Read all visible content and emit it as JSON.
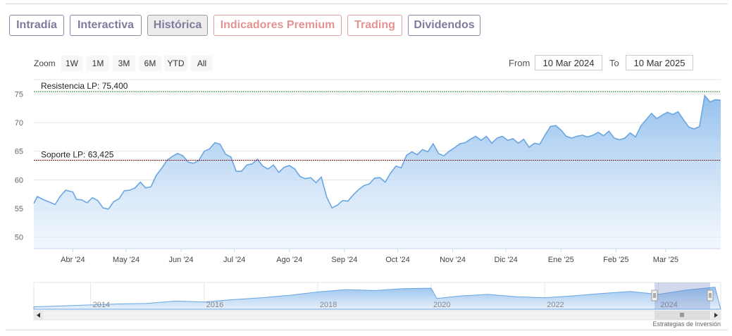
{
  "tabs": [
    {
      "label": "Intradía",
      "variant": "normal"
    },
    {
      "label": "Interactiva",
      "variant": "normal"
    },
    {
      "label": "Histórica",
      "variant": "active"
    },
    {
      "label": "Indicadores Premium",
      "variant": "premium"
    },
    {
      "label": "Trading",
      "variant": "premium"
    },
    {
      "label": "Dividendos",
      "variant": "normal"
    }
  ],
  "zoom": {
    "label": "Zoom",
    "buttons": [
      "1W",
      "1M",
      "3M",
      "6M",
      "YTD",
      "All"
    ]
  },
  "range": {
    "from_label": "From",
    "from_value": "10 Mar 2024",
    "to_label": "To",
    "to_value": "10 Mar 2025"
  },
  "watermark": "Estrategias de Inversión",
  "colors": {
    "line": "#6aa6e2",
    "fill_top": "#8fbdec",
    "resistance": "#2d8a3e",
    "support": "#8b1a1a",
    "tab_border": "#8c87a8",
    "premium": "#e39393"
  },
  "chart_data": {
    "type": "area",
    "x_start": "2024-03-10",
    "x_end": "2025-03-10",
    "ylim": [
      48,
      77.5
    ],
    "yticks": [
      50,
      55,
      60,
      65,
      70,
      75
    ],
    "xtick_labels": [
      "Abr '24",
      "May '24",
      "Jun '24",
      "Jul '24",
      "Ago '24",
      "Sep '24",
      "Oct '24",
      "Nov '24",
      "Dic '24",
      "Ene '25",
      "Feb '25",
      "Mar '25"
    ],
    "xtick_dates": [
      "2024-04-01",
      "2024-05-01",
      "2024-06-01",
      "2024-07-01",
      "2024-08-01",
      "2024-09-01",
      "2024-10-01",
      "2024-11-01",
      "2024-12-01",
      "2025-01-01",
      "2025-02-01",
      "2025-03-01"
    ],
    "series": [
      {
        "points": [
          [
            "2024-03-10",
            55.9
          ],
          [
            "2024-03-12",
            57.1
          ],
          [
            "2024-03-15",
            56.6
          ],
          [
            "2024-03-19",
            56.1
          ],
          [
            "2024-03-22",
            55.7
          ],
          [
            "2024-03-25",
            57.2
          ],
          [
            "2024-03-28",
            58.2
          ],
          [
            "2024-04-01",
            57.9
          ],
          [
            "2024-04-03",
            56.6
          ],
          [
            "2024-04-06",
            56.5
          ],
          [
            "2024-04-09",
            56.0
          ],
          [
            "2024-04-12",
            56.9
          ],
          [
            "2024-04-15",
            56.4
          ],
          [
            "2024-04-18",
            55.1
          ],
          [
            "2024-04-21",
            54.9
          ],
          [
            "2024-04-24",
            56.2
          ],
          [
            "2024-04-27",
            56.7
          ],
          [
            "2024-04-30",
            58.1
          ],
          [
            "2024-05-03",
            58.2
          ],
          [
            "2024-05-06",
            58.6
          ],
          [
            "2024-05-09",
            59.6
          ],
          [
            "2024-05-12",
            58.6
          ],
          [
            "2024-05-15",
            58.8
          ],
          [
            "2024-05-18",
            60.8
          ],
          [
            "2024-05-21",
            62.0
          ],
          [
            "2024-05-24",
            63.4
          ],
          [
            "2024-05-27",
            64.1
          ],
          [
            "2024-05-30",
            64.6
          ],
          [
            "2024-06-02",
            64.2
          ],
          [
            "2024-06-05",
            63.1
          ],
          [
            "2024-06-08",
            62.9
          ],
          [
            "2024-06-11",
            63.4
          ],
          [
            "2024-06-14",
            65.0
          ],
          [
            "2024-06-17",
            65.4
          ],
          [
            "2024-06-20",
            66.5
          ],
          [
            "2024-06-23",
            66.2
          ],
          [
            "2024-06-26",
            64.5
          ],
          [
            "2024-06-29",
            64.0
          ],
          [
            "2024-07-02",
            61.5
          ],
          [
            "2024-07-05",
            61.5
          ],
          [
            "2024-07-08",
            62.6
          ],
          [
            "2024-07-11",
            62.8
          ],
          [
            "2024-07-14",
            63.6
          ],
          [
            "2024-07-17",
            62.4
          ],
          [
            "2024-07-20",
            61.9
          ],
          [
            "2024-07-23",
            62.6
          ],
          [
            "2024-07-26",
            61.3
          ],
          [
            "2024-07-29",
            62.2
          ],
          [
            "2024-08-01",
            62.5
          ],
          [
            "2024-08-04",
            61.9
          ],
          [
            "2024-08-07",
            60.6
          ],
          [
            "2024-08-10",
            60.2
          ],
          [
            "2024-08-13",
            60.4
          ],
          [
            "2024-08-16",
            59.5
          ],
          [
            "2024-08-19",
            60.5
          ],
          [
            "2024-08-22",
            57.0
          ],
          [
            "2024-08-25",
            55.1
          ],
          [
            "2024-08-28",
            55.6
          ],
          [
            "2024-08-31",
            56.4
          ],
          [
            "2024-09-03",
            56.3
          ],
          [
            "2024-09-06",
            57.4
          ],
          [
            "2024-09-09",
            58.3
          ],
          [
            "2024-09-12",
            59.0
          ],
          [
            "2024-09-15",
            59.3
          ],
          [
            "2024-09-18",
            60.3
          ],
          [
            "2024-09-21",
            60.4
          ],
          [
            "2024-09-24",
            59.6
          ],
          [
            "2024-09-27",
            61.2
          ],
          [
            "2024-09-30",
            62.4
          ],
          [
            "2024-10-03",
            62.1
          ],
          [
            "2024-10-06",
            64.3
          ],
          [
            "2024-10-09",
            64.9
          ],
          [
            "2024-10-12",
            64.4
          ],
          [
            "2024-10-15",
            65.3
          ],
          [
            "2024-10-18",
            64.9
          ],
          [
            "2024-10-21",
            66.3
          ],
          [
            "2024-10-24",
            64.6
          ],
          [
            "2024-10-27",
            64.2
          ],
          [
            "2024-10-30",
            65.0
          ],
          [
            "2024-11-02",
            65.6
          ],
          [
            "2024-11-05",
            66.3
          ],
          [
            "2024-11-08",
            66.5
          ],
          [
            "2024-11-11",
            67.1
          ],
          [
            "2024-11-14",
            67.6
          ],
          [
            "2024-11-17",
            66.9
          ],
          [
            "2024-11-20",
            67.6
          ],
          [
            "2024-11-23",
            66.4
          ],
          [
            "2024-11-26",
            67.3
          ],
          [
            "2024-11-29",
            67.6
          ],
          [
            "2024-12-02",
            66.9
          ],
          [
            "2024-12-05",
            67.2
          ],
          [
            "2024-12-08",
            66.4
          ],
          [
            "2024-12-11",
            67.1
          ],
          [
            "2024-12-14",
            65.7
          ],
          [
            "2024-12-17",
            66.4
          ],
          [
            "2024-12-20",
            66.2
          ],
          [
            "2024-12-23",
            67.8
          ],
          [
            "2024-12-26",
            69.3
          ],
          [
            "2024-12-29",
            69.5
          ],
          [
            "2025-01-01",
            68.7
          ],
          [
            "2025-01-04",
            67.6
          ],
          [
            "2025-01-07",
            67.3
          ],
          [
            "2025-01-10",
            67.6
          ],
          [
            "2025-01-13",
            67.8
          ],
          [
            "2025-01-16",
            67.5
          ],
          [
            "2025-01-19",
            67.8
          ],
          [
            "2025-01-22",
            68.3
          ],
          [
            "2025-01-25",
            67.7
          ],
          [
            "2025-01-28",
            68.5
          ],
          [
            "2025-01-31",
            67.3
          ],
          [
            "2025-02-03",
            67.0
          ],
          [
            "2025-02-06",
            67.3
          ],
          [
            "2025-02-09",
            68.2
          ],
          [
            "2025-02-12",
            67.5
          ],
          [
            "2025-02-15",
            69.4
          ],
          [
            "2025-02-18",
            70.5
          ],
          [
            "2025-02-21",
            71.6
          ],
          [
            "2025-02-24",
            70.7
          ],
          [
            "2025-02-27",
            71.3
          ],
          [
            "2025-03-02",
            71.8
          ],
          [
            "2025-03-05",
            71.4
          ],
          [
            "2025-03-08",
            71.9
          ],
          [
            "2025-03-11",
            70.5
          ],
          [
            "2025-03-14",
            69.2
          ],
          [
            "2025-03-17",
            68.9
          ],
          [
            "2025-03-20",
            69.3
          ],
          [
            "2025-03-23",
            74.7
          ],
          [
            "2025-03-26",
            73.6
          ],
          [
            "2025-03-29",
            74.0
          ],
          [
            "2025-04-01",
            73.9
          ]
        ]
      }
    ],
    "annotations": [
      {
        "label": "Resistencia LP: 75,400",
        "value": 75.4,
        "kind": "resistance"
      },
      {
        "label": "Soporte LP: 63,425",
        "value": 63.425,
        "kind": "support"
      }
    ],
    "navigator": {
      "year_labels": [
        "2014",
        "2016",
        "2018",
        "2020",
        "2022",
        "2024"
      ],
      "profile": [
        [
          "2013",
          0.1
        ],
        [
          "2014",
          0.18
        ],
        [
          "2014.5",
          0.22
        ],
        [
          "2015",
          0.24
        ],
        [
          "2015.5",
          0.34
        ],
        [
          "2016",
          0.3
        ],
        [
          "2016.5",
          0.4
        ],
        [
          "2017",
          0.48
        ],
        [
          "2017.5",
          0.58
        ],
        [
          "2018",
          0.72
        ],
        [
          "2018.5",
          0.82
        ],
        [
          "2019",
          0.78
        ],
        [
          "2019.5",
          0.86
        ],
        [
          "2020",
          0.88
        ],
        [
          "2020.1",
          0.45
        ],
        [
          "2020.5",
          0.55
        ],
        [
          "2021",
          0.62
        ],
        [
          "2021.5",
          0.52
        ],
        [
          "2022",
          0.48
        ],
        [
          "2022.5",
          0.56
        ],
        [
          "2023",
          0.66
        ],
        [
          "2023.5",
          0.74
        ],
        [
          "2024",
          0.62
        ],
        [
          "2024.5",
          0.8
        ],
        [
          "2025",
          0.92
        ]
      ]
    }
  }
}
